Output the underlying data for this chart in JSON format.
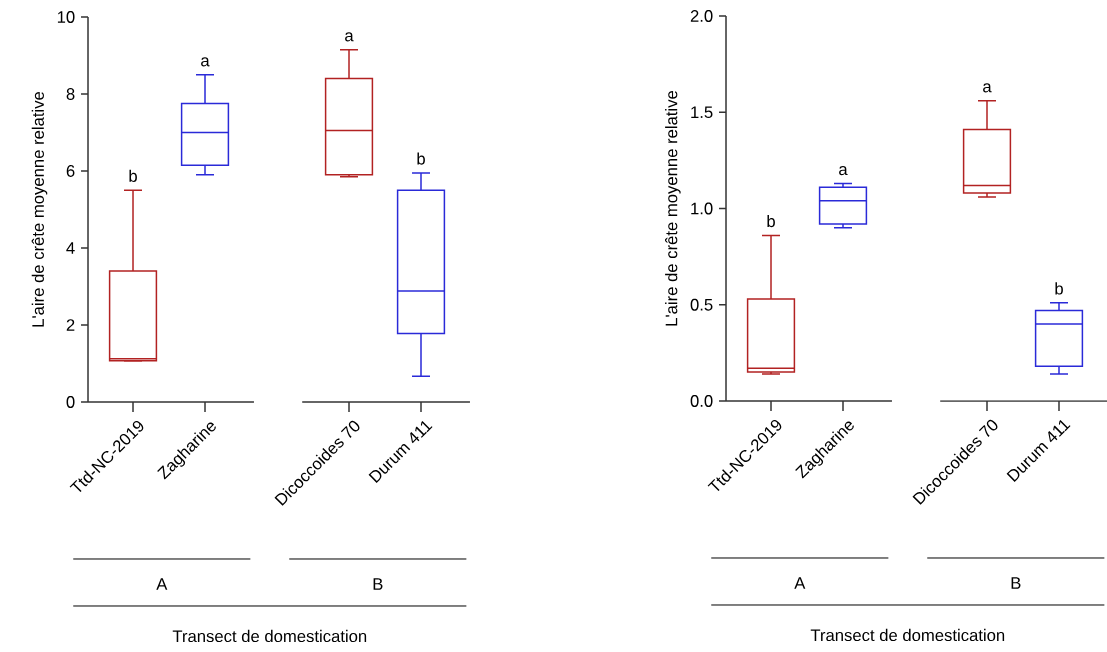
{
  "chart_data": [
    {
      "type": "box",
      "ylabel": "L'aire de crête moyenne relative",
      "xlabel": "Transect de domestication",
      "categories": [
        "Ttd-NC-2019",
        "Zagharine",
        null,
        "Dicoccoides 70",
        "Durum 411"
      ],
      "boxes": [
        {
          "low": 1.07,
          "q1": 1.07,
          "median": 1.12,
          "q3": 3.4,
          "high": 5.5
        },
        {
          "low": 5.9,
          "q1": 6.15,
          "median": 7.0,
          "q3": 7.75,
          "high": 8.5
        },
        null,
        {
          "low": 5.85,
          "q1": 5.9,
          "median": 7.05,
          "q3": 8.4,
          "high": 9.15
        },
        {
          "low": 0.67,
          "q1": 1.78,
          "median": 2.88,
          "q3": 5.5,
          "high": 5.95
        }
      ],
      "colors": [
        "#b22222",
        "#2a2ad8",
        null,
        "#b22222",
        "#2a2ad8"
      ],
      "ylim": [
        0,
        10
      ],
      "yticks": [
        0,
        2,
        4,
        6,
        8,
        10
      ],
      "annotations": [
        "b",
        "a",
        "a",
        "b",
        "A",
        "B"
      ]
    },
    {
      "type": "box",
      "ylabel": "L'aire de crête moyenne relative",
      "xlabel": "Transect de domestication",
      "categories": [
        "Ttd-NC-2019",
        "Zagharine",
        null,
        "Dicoccoides 70",
        "Durum 411"
      ],
      "boxes": [
        {
          "low": 0.14,
          "q1": 0.15,
          "median": 0.17,
          "q3": 0.53,
          "high": 0.86
        },
        {
          "low": 0.9,
          "q1": 0.92,
          "median": 1.04,
          "q3": 1.11,
          "high": 1.13
        },
        null,
        {
          "low": 1.06,
          "q1": 1.08,
          "median": 1.12,
          "q3": 1.41,
          "high": 1.56
        },
        {
          "low": 0.14,
          "q1": 0.18,
          "median": 0.4,
          "q3": 0.47,
          "high": 0.51
        }
      ],
      "colors": [
        "#b22222",
        "#2a2ad8",
        null,
        "#b22222",
        "#2a2ad8"
      ],
      "ylim": [
        0,
        2
      ],
      "yticks": [
        {
          "value": 0,
          "label": "0.0"
        },
        {
          "value": 0.5,
          "label": "0.5"
        },
        {
          "value": 1,
          "label": "1.0"
        },
        {
          "value": 1.5,
          "label": "1.5"
        },
        {
          "value": 2,
          "label": "2.0"
        }
      ],
      "annotations": [
        "b",
        "a",
        "a",
        "b",
        "A",
        "B"
      ]
    }
  ]
}
